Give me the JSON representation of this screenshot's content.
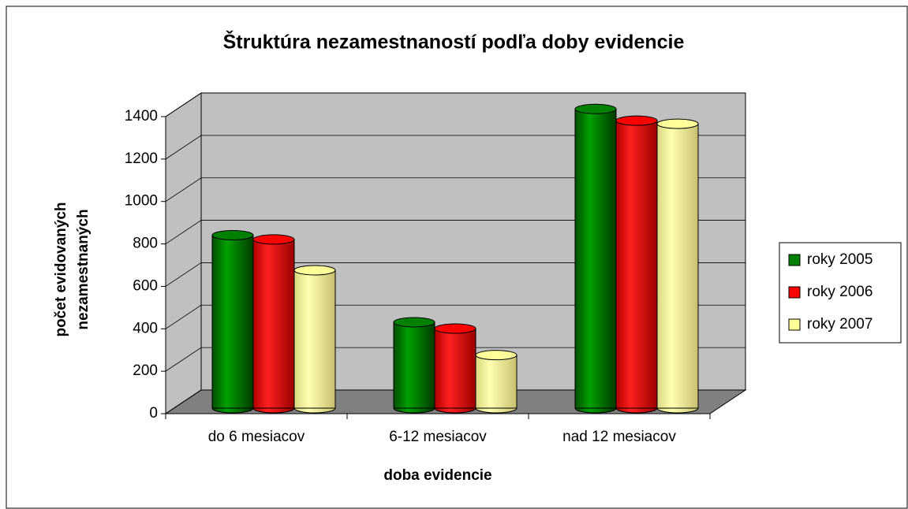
{
  "chart_data": {
    "type": "bar",
    "title": "Štruktúra nezamestnaností podľa doby evidencie",
    "xlabel": "doba evidencie",
    "ylabel": [
      "počet evidovaných",
      "nezamestnaných"
    ],
    "categories": [
      "do 6 mesiacov",
      "6-12 mesiacov",
      "nad 12 mesiacov"
    ],
    "series": [
      {
        "name": "roky 2005",
        "color": "#008000",
        "values": [
          815,
          405,
          1410
        ]
      },
      {
        "name": "roky 2006",
        "color": "#ff0000",
        "values": [
          795,
          375,
          1355
        ]
      },
      {
        "name": "roky 2007",
        "color": "#ffff99",
        "values": [
          650,
          250,
          1340
        ]
      }
    ],
    "ylim": [
      0,
      1400
    ],
    "yticks": [
      0,
      200,
      400,
      600,
      800,
      1000,
      1200,
      1400
    ],
    "grid": true,
    "legend": "right"
  }
}
